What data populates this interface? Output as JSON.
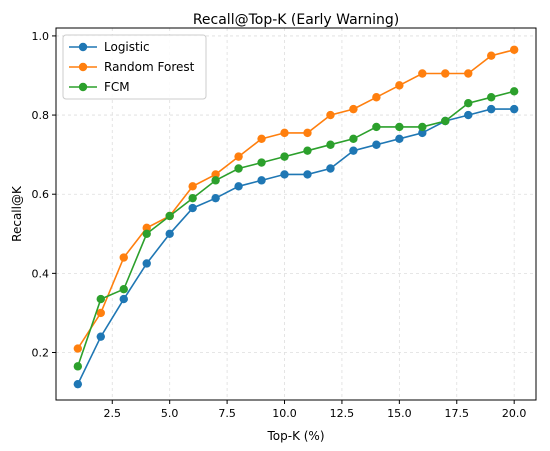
{
  "chart_data": {
    "type": "line",
    "title": "Recall@Top-K (Early Warning)",
    "xlabel": "Top-K (%)",
    "ylabel": "Recall@K",
    "xlim": [
      0.05,
      20.95
    ],
    "ylim": [
      0.08,
      1.02
    ],
    "xticks": [
      2.5,
      5.0,
      7.5,
      10.0,
      12.5,
      15.0,
      17.5,
      20.0
    ],
    "xtick_labels": [
      "2.5",
      "5.0",
      "7.5",
      "10.0",
      "12.5",
      "15.0",
      "17.5",
      "20.0"
    ],
    "yticks": [
      0.2,
      0.4,
      0.6,
      0.8,
      1.0
    ],
    "ytick_labels": [
      "0.2",
      "0.4",
      "0.6",
      "0.8",
      "1.0"
    ],
    "grid": true,
    "legend_position": "top-left",
    "x": [
      1,
      2,
      3,
      4,
      5,
      6,
      7,
      8,
      9,
      10,
      11,
      12,
      13,
      14,
      15,
      16,
      17,
      18,
      19,
      20
    ],
    "series": [
      {
        "name": "Logistic",
        "color": "#1f77b4",
        "values": [
          0.12,
          0.24,
          0.335,
          0.425,
          0.5,
          0.565,
          0.59,
          0.62,
          0.635,
          0.65,
          0.65,
          0.665,
          0.71,
          0.725,
          0.74,
          0.755,
          0.785,
          0.8,
          0.815,
          0.815
        ]
      },
      {
        "name": "Random Forest",
        "color": "#ff7f0e",
        "values": [
          0.21,
          0.3,
          0.44,
          0.515,
          0.545,
          0.62,
          0.65,
          0.695,
          0.74,
          0.755,
          0.755,
          0.8,
          0.815,
          0.845,
          0.875,
          0.905,
          0.905,
          0.905,
          0.95,
          0.965
        ]
      },
      {
        "name": "FCM",
        "color": "#2ca02c",
        "values": [
          0.165,
          0.335,
          0.36,
          0.5,
          0.545,
          0.59,
          0.635,
          0.665,
          0.68,
          0.695,
          0.71,
          0.725,
          0.74,
          0.77,
          0.77,
          0.77,
          0.785,
          0.83,
          0.845,
          0.86
        ]
      }
    ]
  }
}
